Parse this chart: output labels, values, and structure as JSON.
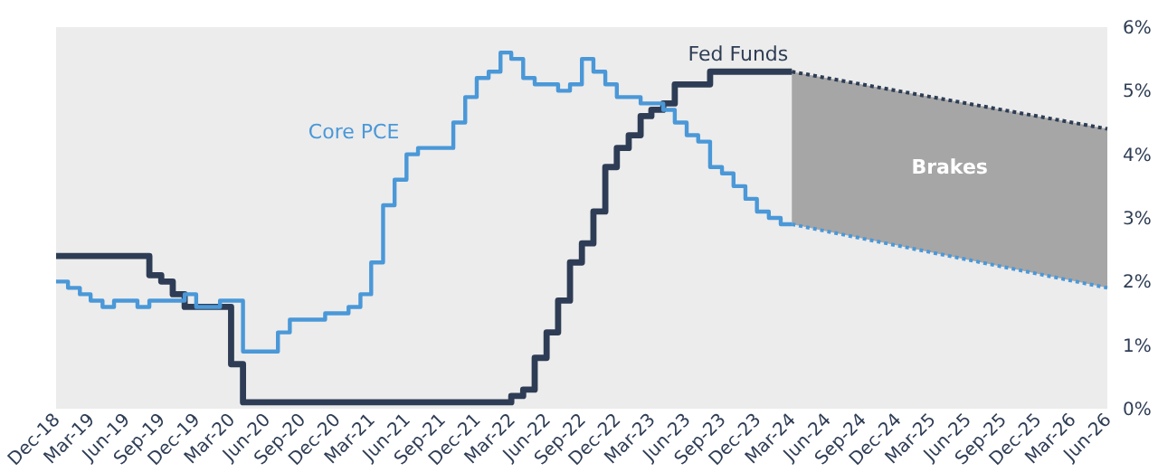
{
  "chart_data": {
    "type": "step",
    "x": [
      "2018-12",
      "2019-01",
      "2019-02",
      "2019-03",
      "2019-04",
      "2019-05",
      "2019-06",
      "2019-07",
      "2019-08",
      "2019-09",
      "2019-10",
      "2019-11",
      "2019-12",
      "2020-01",
      "2020-02",
      "2020-03",
      "2020-04",
      "2020-05",
      "2020-06",
      "2020-07",
      "2020-08",
      "2020-09",
      "2020-10",
      "2020-11",
      "2020-12",
      "2021-01",
      "2021-02",
      "2021-03",
      "2021-04",
      "2021-05",
      "2021-06",
      "2021-07",
      "2021-08",
      "2021-09",
      "2021-10",
      "2021-11",
      "2021-12",
      "2022-01",
      "2022-02",
      "2022-03",
      "2022-04",
      "2022-05",
      "2022-06",
      "2022-07",
      "2022-08",
      "2022-09",
      "2022-10",
      "2022-11",
      "2022-12",
      "2023-01",
      "2023-02",
      "2023-03",
      "2023-04",
      "2023-05",
      "2023-06",
      "2023-07",
      "2023-08",
      "2023-09",
      "2023-10",
      "2023-11",
      "2023-12",
      "2024-01",
      "2024-02",
      "2024-03"
    ],
    "series": [
      {
        "name": "Fed Funds",
        "color": "#2e3d55",
        "values": [
          2.4,
          2.4,
          2.4,
          2.4,
          2.4,
          2.4,
          2.4,
          2.4,
          2.1,
          2.0,
          1.8,
          1.6,
          1.6,
          1.6,
          1.6,
          0.7,
          0.1,
          0.1,
          0.1,
          0.1,
          0.1,
          0.1,
          0.1,
          0.1,
          0.1,
          0.1,
          0.1,
          0.1,
          0.1,
          0.1,
          0.1,
          0.1,
          0.1,
          0.1,
          0.1,
          0.1,
          0.1,
          0.1,
          0.1,
          0.2,
          0.3,
          0.8,
          1.2,
          1.7,
          2.3,
          2.6,
          3.1,
          3.8,
          4.1,
          4.3,
          4.6,
          4.7,
          4.8,
          5.1,
          5.1,
          5.1,
          5.3,
          5.3,
          5.3,
          5.3,
          5.3,
          5.3,
          5.3,
          5.3
        ]
      },
      {
        "name": "Core PCE",
        "color": "#4a98d8",
        "values": [
          2.0,
          1.9,
          1.8,
          1.7,
          1.6,
          1.7,
          1.7,
          1.6,
          1.7,
          1.7,
          1.7,
          1.8,
          1.6,
          1.6,
          1.7,
          1.7,
          0.9,
          0.9,
          0.9,
          1.2,
          1.4,
          1.4,
          1.4,
          1.5,
          1.5,
          1.6,
          1.8,
          2.3,
          3.2,
          3.6,
          4.0,
          4.1,
          4.1,
          4.1,
          4.5,
          4.9,
          5.2,
          5.3,
          5.6,
          5.5,
          5.2,
          5.1,
          5.1,
          5.0,
          5.1,
          5.5,
          5.3,
          5.1,
          4.9,
          4.9,
          4.8,
          4.8,
          4.7,
          4.5,
          4.3,
          4.2,
          3.8,
          3.7,
          3.5,
          3.3,
          3.1,
          3.0,
          2.9,
          2.9
        ]
      },
      {
        "type": "line",
        "color": "#2e3d55",
        "line_style": "dotted",
        "x": [
          "2024-03",
          "2026-06"
        ],
        "values": [
          5.3,
          4.4
        ]
      },
      {
        "type": "line",
        "color": "#4a98d8",
        "line_style": "dotted",
        "x": [
          "2024-03",
          "2026-06"
        ],
        "values": [
          2.9,
          1.9
        ]
      }
    ],
    "annotations": [
      "Brakes"
    ],
    "xlim": [
      "2018-12",
      "2026-06"
    ],
    "xticks": [
      {
        "value": "2018-12",
        "label": "Dec-18"
      },
      {
        "value": "2019-03",
        "label": "Mar-19"
      },
      {
        "value": "2019-06",
        "label": "Jun-19"
      },
      {
        "value": "2019-09",
        "label": "Sep-19"
      },
      {
        "value": "2019-12",
        "label": "Dec-19"
      },
      {
        "value": "2020-03",
        "label": "Mar-20"
      },
      {
        "value": "2020-06",
        "label": "Jun-20"
      },
      {
        "value": "2020-09",
        "label": "Sep-20"
      },
      {
        "value": "2020-12",
        "label": "Dec-20"
      },
      {
        "value": "2021-03",
        "label": "Mar-21"
      },
      {
        "value": "2021-06",
        "label": "Jun-21"
      },
      {
        "value": "2021-09",
        "label": "Sep-21"
      },
      {
        "value": "2021-12",
        "label": "Dec-21"
      },
      {
        "value": "2022-03",
        "label": "Mar-22"
      },
      {
        "value": "2022-06",
        "label": "Jun-22"
      },
      {
        "value": "2022-09",
        "label": "Sep-22"
      },
      {
        "value": "2022-12",
        "label": "Dec-22"
      },
      {
        "value": "2023-03",
        "label": "Mar-23"
      },
      {
        "value": "2023-06",
        "label": "Jun-23"
      },
      {
        "value": "2023-09",
        "label": "Sep-23"
      },
      {
        "value": "2023-12",
        "label": "Dec-23"
      },
      {
        "value": "2024-03",
        "label": "Mar-24"
      },
      {
        "value": "2024-06",
        "label": "Jun-24"
      },
      {
        "value": "2024-09",
        "label": "Sep-24"
      },
      {
        "value": "2024-12",
        "label": "Dec-24"
      },
      {
        "value": "2025-03",
        "label": "Mar-25"
      },
      {
        "value": "2025-06",
        "label": "Jun-25"
      },
      {
        "value": "2025-09",
        "label": "Sep-25"
      },
      {
        "value": "2025-12",
        "label": "Dec-25"
      },
      {
        "value": "2026-03",
        "label": "Mar-26"
      },
      {
        "value": "2026-06",
        "label": "Jun-26"
      }
    ],
    "ylim": [
      0,
      6
    ],
    "yticks": [
      {
        "value": 0,
        "label": "0%"
      },
      {
        "value": 1,
        "label": "1%"
      },
      {
        "value": 2,
        "label": "2%"
      },
      {
        "value": 3,
        "label": "3%"
      },
      {
        "value": 4,
        "label": "4%"
      },
      {
        "value": 5,
        "label": "5%"
      },
      {
        "value": 6,
        "label": "6%"
      }
    ],
    "grid": false,
    "legend": false
  }
}
